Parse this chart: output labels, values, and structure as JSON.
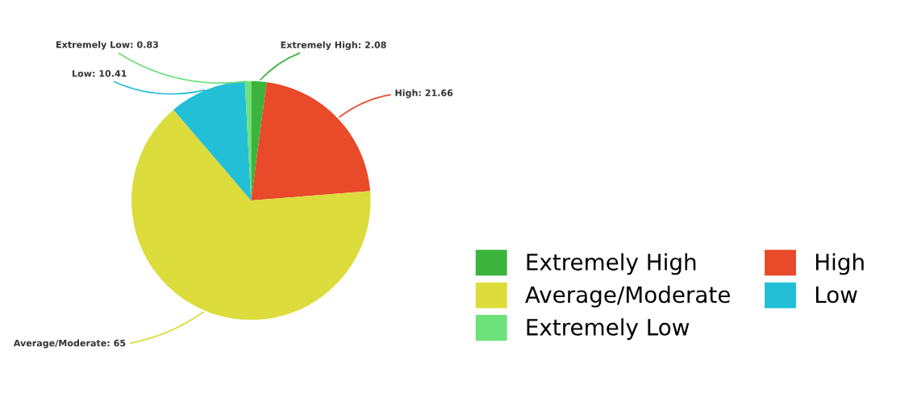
{
  "chart_data": {
    "type": "pie",
    "categories": [
      "Extremely High",
      "High",
      "Average/Moderate",
      "Low",
      "Extremely Low"
    ],
    "values": [
      2.08,
      21.66,
      65,
      10.41,
      0.83
    ],
    "colors": [
      "#3cb43c",
      "#e84a2a",
      "#dcdc3c",
      "#22bfd6",
      "#6ee27a"
    ],
    "value_labels": [
      "Extremely High: 2.08",
      "High: 21.66",
      "Average/Moderate: 65",
      "Low: 10.41",
      "Extremely Low: 0.83"
    ],
    "legend": "bottom right"
  }
}
